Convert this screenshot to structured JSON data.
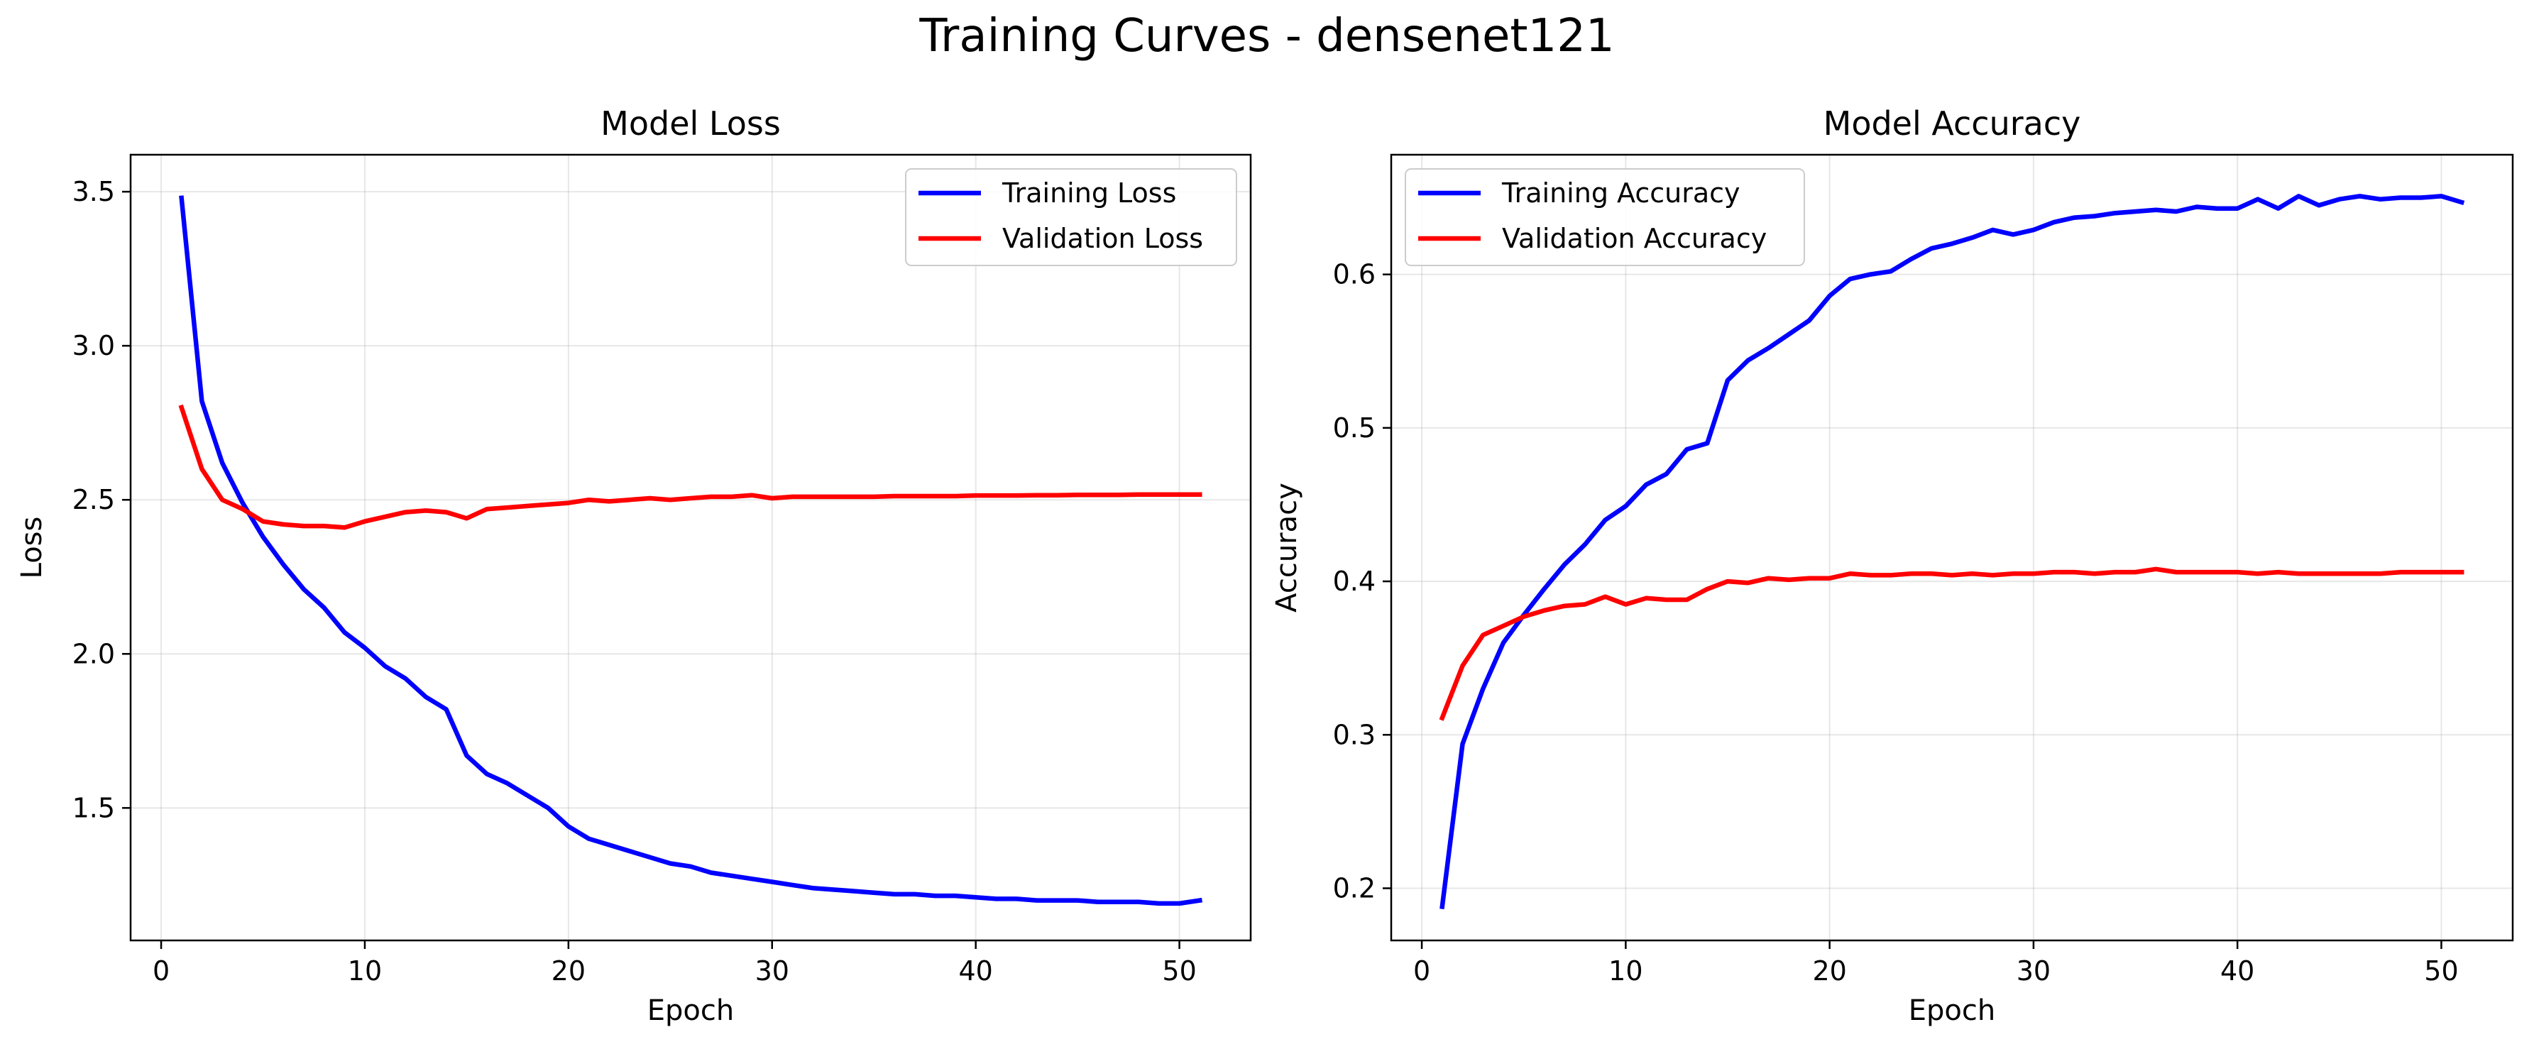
{
  "figure": {
    "title": "Training Curves - densenet121"
  },
  "chart_data": [
    {
      "type": "line",
      "title": "Model Loss",
      "xlabel": "Epoch",
      "ylabel": "Loss",
      "xlim": [
        -1.5,
        53.5
      ],
      "ylim": [
        1.07,
        3.62
      ],
      "xticks": [
        0,
        10,
        20,
        30,
        40,
        50
      ],
      "yticks": [
        1.5,
        2.0,
        2.5,
        3.0,
        3.5
      ],
      "ytick_labels": [
        "1.5",
        "2.0",
        "2.5",
        "3.0",
        "3.5"
      ],
      "grid": true,
      "legend": "upper-right",
      "x": [
        1,
        2,
        3,
        4,
        5,
        6,
        7,
        8,
        9,
        10,
        11,
        12,
        13,
        14,
        15,
        16,
        17,
        18,
        19,
        20,
        21,
        22,
        23,
        24,
        25,
        26,
        27,
        28,
        29,
        30,
        31,
        32,
        33,
        34,
        35,
        36,
        37,
        38,
        39,
        40,
        41,
        42,
        43,
        44,
        45,
        46,
        47,
        48,
        49,
        50,
        51
      ],
      "series": [
        {
          "name": "Training Loss",
          "color": "#0000ff",
          "values": [
            3.48,
            2.82,
            2.62,
            2.49,
            2.38,
            2.29,
            2.21,
            2.15,
            2.07,
            2.02,
            1.96,
            1.92,
            1.86,
            1.82,
            1.67,
            1.61,
            1.58,
            1.54,
            1.5,
            1.44,
            1.4,
            1.38,
            1.36,
            1.34,
            1.32,
            1.31,
            1.29,
            1.28,
            1.27,
            1.26,
            1.25,
            1.24,
            1.235,
            1.23,
            1.225,
            1.22,
            1.22,
            1.215,
            1.215,
            1.21,
            1.205,
            1.205,
            1.2,
            1.2,
            1.2,
            1.195,
            1.195,
            1.195,
            1.19,
            1.19,
            1.2
          ]
        },
        {
          "name": "Validation Loss",
          "color": "#ff0000",
          "values": [
            2.8,
            2.6,
            2.5,
            2.47,
            2.43,
            2.42,
            2.415,
            2.415,
            2.41,
            2.43,
            2.445,
            2.46,
            2.465,
            2.46,
            2.44,
            2.47,
            2.475,
            2.48,
            2.485,
            2.49,
            2.5,
            2.495,
            2.5,
            2.505,
            2.5,
            2.505,
            2.51,
            2.51,
            2.515,
            2.505,
            2.51,
            2.51,
            2.51,
            2.51,
            2.51,
            2.512,
            2.512,
            2.512,
            2.512,
            2.514,
            2.514,
            2.514,
            2.515,
            2.515,
            2.516,
            2.516,
            2.516,
            2.517,
            2.517,
            2.517,
            2.517
          ]
        }
      ]
    },
    {
      "type": "line",
      "title": "Model Accuracy",
      "xlabel": "Epoch",
      "ylabel": "Accuracy",
      "xlim": [
        -1.5,
        53.5
      ],
      "ylim": [
        0.166,
        0.678
      ],
      "xticks": [
        0,
        10,
        20,
        30,
        40,
        50
      ],
      "yticks": [
        0.2,
        0.3,
        0.4,
        0.5,
        0.6
      ],
      "ytick_labels": [
        "0.2",
        "0.3",
        "0.4",
        "0.5",
        "0.6"
      ],
      "grid": true,
      "legend": "upper-left",
      "x": [
        1,
        2,
        3,
        4,
        5,
        6,
        7,
        8,
        9,
        10,
        11,
        12,
        13,
        14,
        15,
        16,
        17,
        18,
        19,
        20,
        21,
        22,
        23,
        24,
        25,
        26,
        27,
        28,
        29,
        30,
        31,
        32,
        33,
        34,
        35,
        36,
        37,
        38,
        39,
        40,
        41,
        42,
        43,
        44,
        45,
        46,
        47,
        48,
        49,
        50,
        51
      ],
      "series": [
        {
          "name": "Training Accuracy",
          "color": "#0000ff",
          "values": [
            0.188,
            0.294,
            0.33,
            0.36,
            0.378,
            0.395,
            0.411,
            0.424,
            0.44,
            0.449,
            0.463,
            0.47,
            0.486,
            0.49,
            0.531,
            0.544,
            0.552,
            0.561,
            0.57,
            0.586,
            0.597,
            0.6,
            0.602,
            0.61,
            0.617,
            0.62,
            0.624,
            0.629,
            0.626,
            0.629,
            0.634,
            0.637,
            0.638,
            0.64,
            0.641,
            0.642,
            0.641,
            0.644,
            0.643,
            0.643,
            0.649,
            0.643,
            0.651,
            0.645,
            0.649,
            0.651,
            0.649,
            0.65,
            0.65,
            0.651,
            0.647
          ]
        },
        {
          "name": "Validation Accuracy",
          "color": "#ff0000",
          "values": [
            0.311,
            0.345,
            0.365,
            0.371,
            0.377,
            0.381,
            0.384,
            0.385,
            0.39,
            0.385,
            0.389,
            0.388,
            0.388,
            0.395,
            0.4,
            0.399,
            0.402,
            0.401,
            0.402,
            0.402,
            0.405,
            0.404,
            0.404,
            0.405,
            0.405,
            0.404,
            0.405,
            0.404,
            0.405,
            0.405,
            0.406,
            0.406,
            0.405,
            0.406,
            0.406,
            0.408,
            0.406,
            0.406,
            0.406,
            0.406,
            0.405,
            0.406,
            0.405,
            0.405,
            0.405,
            0.405,
            0.405,
            0.406,
            0.406,
            0.406,
            0.406
          ]
        }
      ]
    }
  ]
}
